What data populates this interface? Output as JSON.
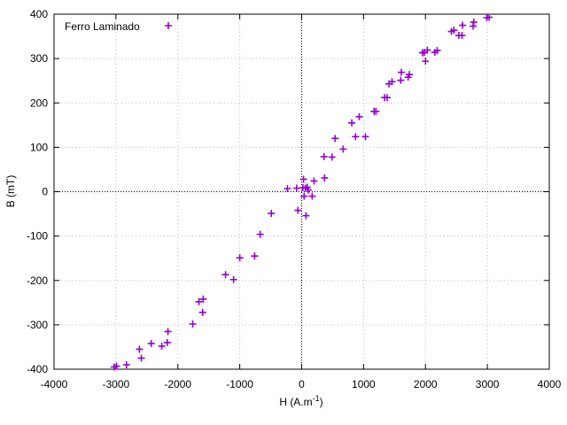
{
  "chart_data": {
    "type": "scatter",
    "title": "",
    "xlabel": "H (A.m",
    "xlabel_sup": "-1",
    "xlabel_tail": ")",
    "ylabel": "B (mT)",
    "xlim": [
      -4000,
      4000
    ],
    "ylim": [
      -400,
      400
    ],
    "xticks": [
      -4000,
      -3000,
      -2000,
      -1000,
      0,
      1000,
      2000,
      3000,
      4000
    ],
    "yticks": [
      -400,
      -300,
      -200,
      -100,
      0,
      100,
      200,
      300,
      400
    ],
    "grid": true,
    "zero_lines": true,
    "legend_position": "top-left",
    "marker": "plus",
    "colors": {
      "series": "#9400d3",
      "grid": "#bbbbbb",
      "axis": "#000000"
    },
    "series": [
      {
        "name": "Ferro Laminado",
        "points": [
          [
            -3030,
            -395
          ],
          [
            -2990,
            -393
          ],
          [
            -2830,
            -390
          ],
          [
            -2620,
            -355
          ],
          [
            -2590,
            -375
          ],
          [
            -2430,
            -342
          ],
          [
            -2260,
            -348
          ],
          [
            -2170,
            -340
          ],
          [
            -2160,
            -315
          ],
          [
            -1760,
            -298
          ],
          [
            -1660,
            -248
          ],
          [
            -1600,
            -272
          ],
          [
            -1590,
            -242
          ],
          [
            -1230,
            -187
          ],
          [
            -1100,
            -198
          ],
          [
            -1000,
            -149
          ],
          [
            -760,
            -145
          ],
          [
            -670,
            -96
          ],
          [
            -490,
            -49
          ],
          [
            -230,
            7
          ],
          [
            -80,
            8
          ],
          [
            -60,
            -42
          ],
          [
            20,
            9
          ],
          [
            30,
            28
          ],
          [
            40,
            -10
          ],
          [
            60,
            8
          ],
          [
            70,
            -54
          ],
          [
            90,
            10
          ],
          [
            110,
            4
          ],
          [
            170,
            -10
          ],
          [
            200,
            24
          ],
          [
            360,
            79
          ],
          [
            370,
            31
          ],
          [
            490,
            78
          ],
          [
            540,
            120
          ],
          [
            670,
            96
          ],
          [
            810,
            155
          ],
          [
            870,
            124
          ],
          [
            930,
            169
          ],
          [
            1030,
            124
          ],
          [
            1170,
            181
          ],
          [
            1200,
            181
          ],
          [
            1340,
            212
          ],
          [
            1380,
            212
          ],
          [
            1410,
            243
          ],
          [
            1460,
            248
          ],
          [
            1600,
            251
          ],
          [
            1610,
            269
          ],
          [
            1720,
            258
          ],
          [
            1740,
            264
          ],
          [
            1950,
            313
          ],
          [
            1980,
            314
          ],
          [
            2000,
            294
          ],
          [
            2030,
            319
          ],
          [
            2150,
            314
          ],
          [
            2190,
            318
          ],
          [
            2420,
            361
          ],
          [
            2460,
            364
          ],
          [
            2540,
            352
          ],
          [
            2590,
            352
          ],
          [
            2600,
            375
          ],
          [
            2770,
            373
          ],
          [
            2780,
            382
          ],
          [
            2990,
            392
          ],
          [
            3030,
            393
          ]
        ]
      }
    ]
  }
}
